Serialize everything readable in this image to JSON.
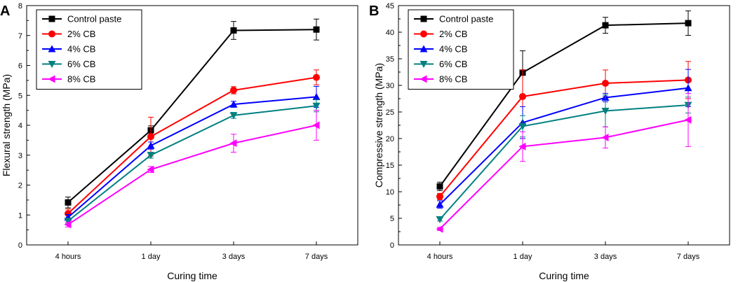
{
  "chart_data": [
    {
      "type": "line",
      "panel_label": "A",
      "title": "",
      "xlabel": "Curing time",
      "ylabel": "Flexural strength (MPa)",
      "categories": [
        "4 hours",
        "1 day",
        "3 days",
        "7 days"
      ],
      "ylim": [
        0,
        8
      ],
      "yticks": [
        0,
        1,
        2,
        3,
        4,
        5,
        6,
        7,
        8
      ],
      "legend_position": "top-left",
      "series": [
        {
          "name": "Control paste",
          "color": "#000000",
          "marker": "square",
          "values": [
            1.42,
            3.83,
            7.17,
            7.2
          ],
          "errors": [
            0.18,
            0.15,
            0.3,
            0.35
          ]
        },
        {
          "name": "2% CB",
          "color": "#ff0000",
          "marker": "circle",
          "values": [
            1.05,
            3.62,
            5.17,
            5.6
          ],
          "errors": [
            0.15,
            0.65,
            0.12,
            0.25
          ]
        },
        {
          "name": "4% CB",
          "color": "#0000ff",
          "marker": "triangle-up",
          "values": [
            0.92,
            3.32,
            4.7,
            4.95
          ],
          "errors": [
            0.1,
            0.12,
            0.1,
            0.35
          ]
        },
        {
          "name": "6% CB",
          "color": "#008080",
          "marker": "triangle-down",
          "values": [
            0.8,
            3.0,
            4.33,
            4.65
          ],
          "errors": [
            0.08,
            0.1,
            0.1,
            0.2
          ]
        },
        {
          "name": "8% CB",
          "color": "#ff00ff",
          "marker": "triangle-left",
          "values": [
            0.68,
            2.52,
            3.4,
            4.0
          ],
          "errors": [
            0.08,
            0.1,
            0.3,
            0.5
          ]
        }
      ]
    },
    {
      "type": "line",
      "panel_label": "B",
      "title": "",
      "xlabel": "Curing time",
      "ylabel": "Compressive strength (MPa)",
      "categories": [
        "4 hours",
        "1 day",
        "3 days",
        "7 days"
      ],
      "ylim": [
        0,
        45
      ],
      "yticks": [
        0,
        5,
        10,
        15,
        20,
        25,
        30,
        35,
        40,
        45
      ],
      "legend_position": "top-left",
      "series": [
        {
          "name": "Control paste",
          "color": "#000000",
          "marker": "square",
          "values": [
            11.0,
            32.4,
            41.3,
            41.7
          ],
          "errors": [
            0.8,
            4.1,
            1.5,
            2.3
          ]
        },
        {
          "name": "2% CB",
          "color": "#ff0000",
          "marker": "circle",
          "values": [
            9.1,
            27.9,
            30.4,
            31.0
          ],
          "errors": [
            0.6,
            5.0,
            2.5,
            3.5
          ]
        },
        {
          "name": "4% CB",
          "color": "#0000ff",
          "marker": "triangle-up",
          "values": [
            7.6,
            23.0,
            27.7,
            29.5
          ],
          "errors": [
            0.7,
            3.0,
            0.8,
            3.5
          ]
        },
        {
          "name": "6% CB",
          "color": "#008080",
          "marker": "triangle-down",
          "values": [
            4.8,
            22.3,
            25.2,
            26.3
          ],
          "errors": [
            0.3,
            2.0,
            3.0,
            1.5
          ]
        },
        {
          "name": "8% CB",
          "color": "#ff00ff",
          "marker": "triangle-left",
          "values": [
            3.0,
            18.5,
            20.2,
            23.5
          ],
          "errors": [
            0.3,
            2.8,
            2.0,
            5.0
          ]
        }
      ]
    }
  ]
}
